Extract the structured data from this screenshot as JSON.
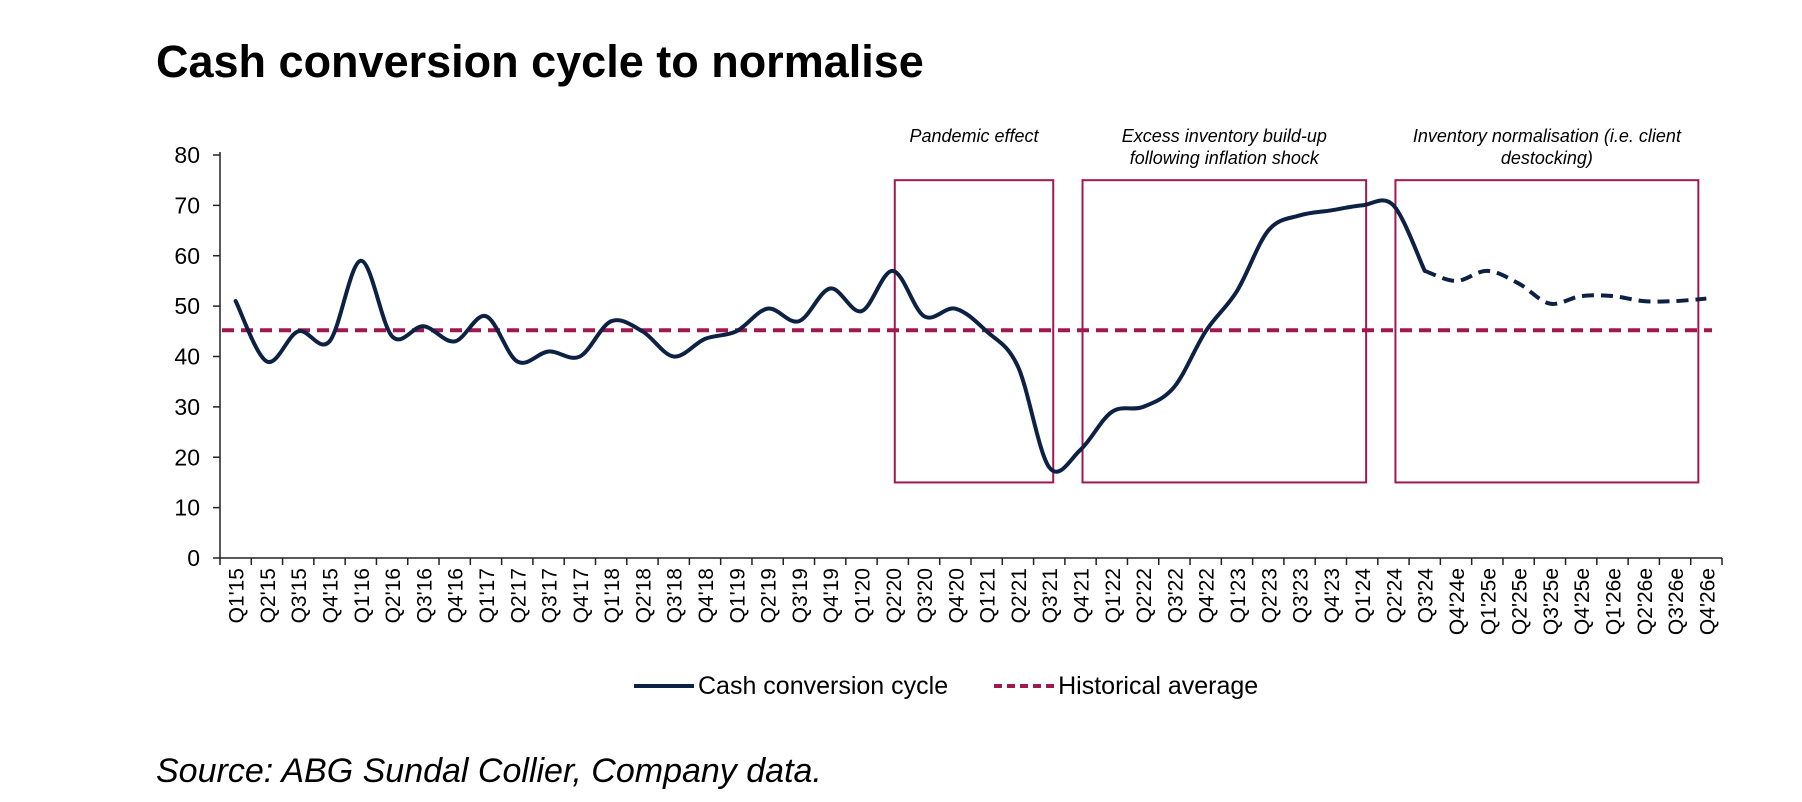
{
  "title": "Cash conversion cycle to normalise",
  "source": "Source: ABG Sundal Collier, Company data.",
  "colors": {
    "ccc_line": "#0d2145",
    "average_line": "#a01850",
    "box_stroke": "#a01850",
    "axis": "#222222"
  },
  "chart_data": {
    "type": "line",
    "title": "Cash conversion cycle to normalise",
    "xlabel": "",
    "ylabel": "",
    "ylim": [
      0,
      80
    ],
    "yticks": [
      0,
      10,
      20,
      30,
      40,
      50,
      60,
      70,
      80
    ],
    "grid": false,
    "legend_position": "bottom",
    "categories": [
      "Q1'15",
      "Q2'15",
      "Q3'15",
      "Q4'15",
      "Q1'16",
      "Q2'16",
      "Q3'16",
      "Q4'16",
      "Q1'17",
      "Q2'17",
      "Q3'17",
      "Q4'17",
      "Q1'18",
      "Q2'18",
      "Q3'18",
      "Q4'18",
      "Q1'19",
      "Q2'19",
      "Q3'19",
      "Q4'19",
      "Q1'20",
      "Q2'20",
      "Q3'20",
      "Q4'20",
      "Q1'21",
      "Q2'21",
      "Q3'21",
      "Q4'21",
      "Q1'22",
      "Q2'22",
      "Q3'22",
      "Q4'22",
      "Q1'23",
      "Q2'23",
      "Q3'23",
      "Q4'23",
      "Q1'24",
      "Q2'24",
      "Q3'24",
      "Q4'24e",
      "Q1'25e",
      "Q2'25e",
      "Q3'25e",
      "Q4'25e",
      "Q1'26e",
      "Q2'26e",
      "Q3'26e",
      "Q4'26e"
    ],
    "series": [
      {
        "name": "Cash conversion cycle",
        "style": "solid",
        "dashed_from_index": 38,
        "values": [
          51,
          39,
          45,
          43,
          59,
          44,
          46,
          43,
          48,
          39,
          41,
          40,
          47,
          45,
          40,
          43.5,
          45,
          49.5,
          47,
          53.5,
          49,
          57,
          48,
          49.5,
          45,
          38,
          18,
          21.5,
          29,
          30,
          34,
          45,
          53,
          65,
          68,
          69,
          70,
          70,
          57,
          55,
          57,
          54.5,
          50.5,
          52,
          52,
          51,
          51,
          51.5
        ]
      },
      {
        "name": "Historical average",
        "style": "dashed",
        "values": [
          45.2,
          45.2,
          45.2,
          45.2,
          45.2,
          45.2,
          45.2,
          45.2,
          45.2,
          45.2,
          45.2,
          45.2,
          45.2,
          45.2,
          45.2,
          45.2,
          45.2,
          45.2,
          45.2,
          45.2,
          45.2,
          45.2,
          45.2,
          45.2,
          45.2,
          45.2,
          45.2,
          45.2,
          45.2,
          45.2,
          45.2,
          45.2,
          45.2,
          45.2,
          45.2,
          45.2,
          45.2,
          45.2,
          45.2,
          45.2,
          45.2,
          45.2,
          45.2,
          45.2,
          45.2,
          45.2,
          45.2,
          45.2
        ]
      }
    ],
    "annotations": [
      {
        "name": "pandemic-effect",
        "lines": [
          "Pandemic effect"
        ],
        "x_start": "Q2'20",
        "x_end": "Q3'21",
        "y_range": [
          15,
          75
        ]
      },
      {
        "name": "excess-inventory",
        "lines": [
          "Excess inventory build-up",
          "following inflation shock"
        ],
        "x_start": "Q4'21",
        "x_end": "Q1'24",
        "y_range": [
          15,
          75
        ]
      },
      {
        "name": "inventory-normalisation",
        "lines": [
          "Inventory normalisation (i.e. client",
          "destocking)"
        ],
        "x_start": "Q2'24",
        "x_end": "Q4'26e",
        "y_range": [
          15,
          75
        ]
      }
    ]
  },
  "legend": {
    "items": [
      {
        "label": "Cash conversion cycle",
        "style": "solid"
      },
      {
        "label": "Historical average",
        "style": "dashed"
      }
    ]
  }
}
